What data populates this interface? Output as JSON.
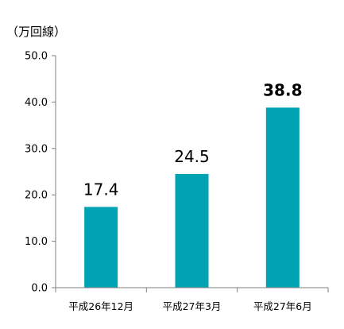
{
  "chart_data": {
    "type": "bar",
    "unit_label": "（万回線）",
    "categories": [
      "平成26年12月",
      "平成27年3月",
      "平成27年6月"
    ],
    "values": [
      17.4,
      24.5,
      38.8
    ],
    "data_labels": [
      "17.4",
      "24.5",
      "38.8"
    ],
    "highlight_index": 2,
    "ylim": [
      0,
      50
    ],
    "yticks": [
      "0.0",
      "10.0",
      "20.0",
      "30.0",
      "40.0",
      "50.0"
    ],
    "ytick_values": [
      0,
      10,
      20,
      30,
      40,
      50
    ],
    "grid": false,
    "legend": "none",
    "colors": {
      "bar": "#00A3B4",
      "highlight_label": "#E00000",
      "label": "#000000",
      "axis": "#808080"
    }
  }
}
